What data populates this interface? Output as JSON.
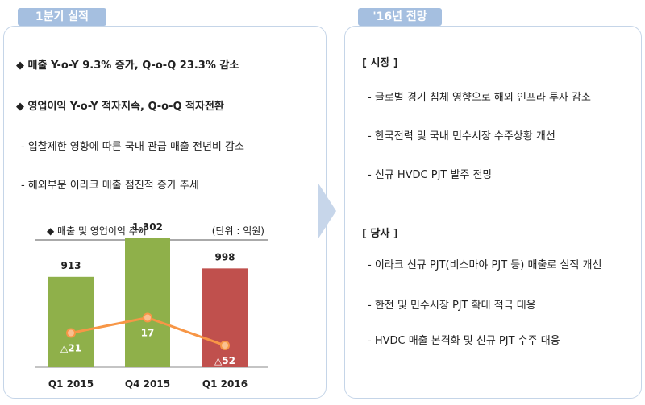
{
  "left": {
    "tab": "1분기 실적",
    "bullets": [
      "◆ 매출 Y-o-Y 9.3% 증가, Q-o-Q 23.3% 감소",
      "◆ 영업이익 Y-o-Y 적자지속, Q-o-Q 적자전환",
      "- 입찰제한 영향에 따른 국내 관급 매출 전년비 감소",
      "- 해외부문 이라크 매출 점진적 증가 추세"
    ]
  },
  "right": {
    "tab": "'16년 전망",
    "market_header": "[ 시장 ]",
    "market_items": [
      "- 글로벌 경기 침체 영향으로 해외 인프라 투자 감소",
      "- 한국전력 및 국내 민수시장 수주상황 개선",
      "- 신규 HVDC PJT 발주 전망"
    ],
    "company_header": "[ 당사 ]",
    "company_items": [
      "- 이라크 신규 PJT(비스마야 PJT 등) 매출로 실적 개선",
      "- 한전 및 민수시장 PJT 확대 적극 대응",
      "- HVDC 매출 본격화 및 신규 PJT 수주 대응"
    ]
  },
  "chart_data": {
    "type": "bar",
    "title": "◆ 매출 및 영업이익 추이",
    "unit_label": "(단위 : 억원)",
    "categories": [
      "Q1 2015",
      "Q4 2015",
      "Q1 2016"
    ],
    "series": [
      {
        "values": [
          913,
          1302,
          998
        ],
        "value_labels": [
          "913",
          "1,302",
          "998"
        ]
      },
      {
        "values": [
          -21,
          17,
          -52
        ],
        "value_labels": [
          "△21",
          "17",
          "△52"
        ]
      }
    ],
    "bar_colors": [
      "#8fb04a",
      "#8fb04a",
      "#c0504d"
    ],
    "line_color": "#f79646",
    "ylim": [
      0,
      1400
    ],
    "grid": false
  }
}
